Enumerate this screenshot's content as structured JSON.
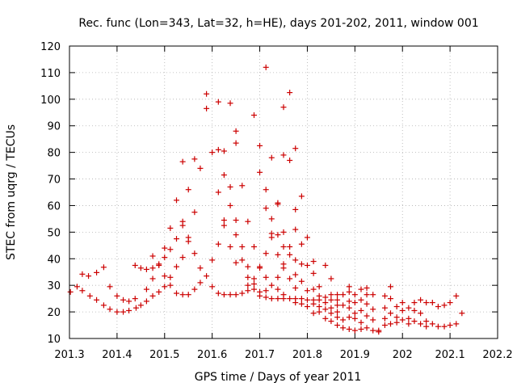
{
  "chart_data": {
    "type": "scatter",
    "title": "Rec. func (Lon=343, Lat=32, h=HE), days 201-202, 2011, window 001",
    "xlabel": "GPS time / Days of year 2011",
    "ylabel": "STEC from uqrg / TECUs",
    "xlim": [
      201.3,
      202.2
    ],
    "ylim": [
      10,
      120
    ],
    "xticks": [
      201.3,
      201.4,
      201.5,
      201.6,
      201.7,
      201.8,
      201.9,
      202,
      202.1,
      202.2
    ],
    "xtick_labels": [
      "201.3",
      "201.4",
      "201.5",
      "201.6",
      "201.7",
      "201.8",
      "201.9",
      "202",
      "202.1",
      "202.2"
    ],
    "yticks": [
      10,
      20,
      30,
      40,
      50,
      60,
      70,
      80,
      90,
      100,
      110,
      120
    ],
    "ytick_labels": [
      "10",
      "20",
      "30",
      "40",
      "50",
      "60",
      "70",
      "80",
      "90",
      "100",
      "110",
      "120"
    ],
    "marker_color": "#cc0000",
    "series": [
      {
        "name": "STEC",
        "points": [
          [
            201.302,
            27.5
          ],
          [
            201.316,
            29.5
          ],
          [
            201.327,
            34.2
          ],
          [
            201.327,
            28.0
          ],
          [
            201.34,
            33.5
          ],
          [
            201.343,
            26.0
          ],
          [
            201.357,
            34.8
          ],
          [
            201.357,
            24.5
          ],
          [
            201.372,
            36.8
          ],
          [
            201.372,
            22.5
          ],
          [
            201.385,
            29.5
          ],
          [
            201.385,
            21.0
          ],
          [
            201.4,
            26.0
          ],
          [
            201.4,
            20.0
          ],
          [
            201.413,
            24.5
          ],
          [
            201.413,
            20.0
          ],
          [
            201.425,
            24.0
          ],
          [
            201.425,
            20.5
          ],
          [
            201.438,
            37.5
          ],
          [
            201.438,
            25.0
          ],
          [
            201.44,
            21.5
          ],
          [
            201.45,
            36.5
          ],
          [
            201.45,
            22.5
          ],
          [
            201.462,
            36.0
          ],
          [
            201.462,
            28.5
          ],
          [
            201.462,
            24.0
          ],
          [
            201.475,
            36.5
          ],
          [
            201.475,
            41.0
          ],
          [
            201.475,
            32.5
          ],
          [
            201.475,
            26.0
          ],
          [
            201.488,
            38.0
          ],
          [
            201.488,
            37.5
          ],
          [
            201.488,
            27.5
          ],
          [
            201.5,
            44.0
          ],
          [
            201.5,
            40.5
          ],
          [
            201.5,
            33.5
          ],
          [
            201.5,
            29.5
          ],
          [
            201.512,
            51.5
          ],
          [
            201.512,
            43.5
          ],
          [
            201.512,
            33.0
          ],
          [
            201.512,
            30.0
          ],
          [
            201.525,
            62.0
          ],
          [
            201.525,
            47.5
          ],
          [
            201.525,
            37.0
          ],
          [
            201.525,
            27.0
          ],
          [
            201.538,
            76.5
          ],
          [
            201.538,
            54.0
          ],
          [
            201.538,
            52.5
          ],
          [
            201.538,
            40.5
          ],
          [
            201.538,
            26.5
          ],
          [
            201.55,
            66.0
          ],
          [
            201.55,
            48.0
          ],
          [
            201.55,
            46.5
          ],
          [
            201.55,
            26.5
          ],
          [
            201.563,
            77.5
          ],
          [
            201.563,
            57.5
          ],
          [
            201.563,
            42.0
          ],
          [
            201.563,
            28.5
          ],
          [
            201.575,
            74.0
          ],
          [
            201.575,
            36.5
          ],
          [
            201.575,
            31.0
          ],
          [
            201.588,
            102.0
          ],
          [
            201.588,
            96.5
          ],
          [
            201.588,
            33.5
          ],
          [
            201.6,
            80.0
          ],
          [
            201.6,
            39.5
          ],
          [
            201.6,
            29.5
          ],
          [
            201.613,
            99.0
          ],
          [
            201.613,
            81.0
          ],
          [
            201.613,
            65.0
          ],
          [
            201.613,
            45.5
          ],
          [
            201.613,
            27.0
          ],
          [
            201.625,
            80.5
          ],
          [
            201.625,
            71.5
          ],
          [
            201.625,
            54.5
          ],
          [
            201.625,
            52.5
          ],
          [
            201.625,
            26.5
          ],
          [
            201.638,
            98.5
          ],
          [
            201.638,
            67.0
          ],
          [
            201.638,
            60.0
          ],
          [
            201.638,
            44.5
          ],
          [
            201.638,
            26.5
          ],
          [
            201.65,
            88.0
          ],
          [
            201.65,
            83.5
          ],
          [
            201.65,
            54.5
          ],
          [
            201.65,
            49.0
          ],
          [
            201.65,
            38.5
          ],
          [
            201.65,
            26.5
          ],
          [
            201.663,
            67.5
          ],
          [
            201.663,
            44.5
          ],
          [
            201.663,
            39.5
          ],
          [
            201.663,
            27.0
          ],
          [
            201.675,
            54.0
          ],
          [
            201.675,
            37.0
          ],
          [
            201.675,
            33.0
          ],
          [
            201.675,
            30.0
          ],
          [
            201.675,
            28.0
          ],
          [
            201.688,
            94.0
          ],
          [
            201.688,
            44.5
          ],
          [
            201.688,
            32.5
          ],
          [
            201.688,
            30.5
          ],
          [
            201.688,
            28.5
          ],
          [
            201.7,
            82.5
          ],
          [
            201.7,
            72.5
          ],
          [
            201.7,
            37.0
          ],
          [
            201.7,
            36.5
          ],
          [
            201.7,
            27.5
          ],
          [
            201.7,
            26.0
          ],
          [
            201.713,
            112.0
          ],
          [
            201.713,
            66.0
          ],
          [
            201.713,
            59.0
          ],
          [
            201.713,
            42.0
          ],
          [
            201.713,
            33.0
          ],
          [
            201.713,
            28.0
          ],
          [
            201.713,
            25.5
          ],
          [
            201.725,
            78.0
          ],
          [
            201.725,
            55.0
          ],
          [
            201.725,
            49.5
          ],
          [
            201.725,
            48.0
          ],
          [
            201.725,
            30.0
          ],
          [
            201.725,
            25.0
          ],
          [
            201.738,
            61.0
          ],
          [
            201.738,
            60.5
          ],
          [
            201.738,
            49.0
          ],
          [
            201.738,
            41.5
          ],
          [
            201.738,
            33.0
          ],
          [
            201.738,
            28.5
          ],
          [
            201.738,
            25.0
          ],
          [
            201.75,
            97.0
          ],
          [
            201.75,
            79.0
          ],
          [
            201.75,
            50.0
          ],
          [
            201.75,
            44.5
          ],
          [
            201.75,
            38.0
          ],
          [
            201.75,
            36.5
          ],
          [
            201.75,
            26.5
          ],
          [
            201.75,
            25.0
          ],
          [
            201.763,
            102.5
          ],
          [
            201.763,
            77.0
          ],
          [
            201.763,
            44.5
          ],
          [
            201.763,
            41.5
          ],
          [
            201.763,
            32.5
          ],
          [
            201.763,
            25.0
          ],
          [
            201.775,
            81.5
          ],
          [
            201.775,
            58.5
          ],
          [
            201.775,
            51.0
          ],
          [
            201.775,
            39.5
          ],
          [
            201.775,
            34.0
          ],
          [
            201.775,
            29.0
          ],
          [
            201.775,
            25.0
          ],
          [
            201.775,
            23.5
          ],
          [
            201.788,
            63.5
          ],
          [
            201.788,
            45.5
          ],
          [
            201.788,
            38.0
          ],
          [
            201.788,
            31.5
          ],
          [
            201.788,
            25.0
          ],
          [
            201.788,
            23.0
          ],
          [
            201.8,
            48.0
          ],
          [
            201.8,
            37.5
          ],
          [
            201.8,
            28.0
          ],
          [
            201.8,
            24.5
          ],
          [
            201.8,
            22.0
          ],
          [
            201.813,
            39.0
          ],
          [
            201.813,
            34.5
          ],
          [
            201.813,
            28.5
          ],
          [
            201.813,
            24.5
          ],
          [
            201.813,
            23.0
          ],
          [
            201.813,
            19.5
          ],
          [
            201.825,
            29.5
          ],
          [
            201.825,
            26.0
          ],
          [
            201.825,
            24.5
          ],
          [
            201.825,
            22.0
          ],
          [
            201.825,
            20.0
          ],
          [
            201.838,
            37.5
          ],
          [
            201.838,
            25.5
          ],
          [
            201.838,
            23.5
          ],
          [
            201.838,
            21.0
          ],
          [
            201.838,
            17.5
          ],
          [
            201.85,
            32.5
          ],
          [
            201.85,
            26.5
          ],
          [
            201.85,
            24.5
          ],
          [
            201.85,
            21.5
          ],
          [
            201.85,
            19.5
          ],
          [
            201.85,
            16.5
          ],
          [
            201.863,
            26.5
          ],
          [
            201.863,
            24.5
          ],
          [
            201.863,
            22.5
          ],
          [
            201.863,
            20.0
          ],
          [
            201.863,
            18.0
          ],
          [
            201.863,
            15.0
          ],
          [
            201.875,
            26.5
          ],
          [
            201.875,
            22.5
          ],
          [
            201.875,
            17.0
          ],
          [
            201.875,
            14.0
          ],
          [
            201.888,
            29.5
          ],
          [
            201.888,
            27.5
          ],
          [
            201.888,
            24.0
          ],
          [
            201.888,
            21.5
          ],
          [
            201.888,
            18.0
          ],
          [
            201.888,
            13.5
          ],
          [
            201.9,
            26.5
          ],
          [
            201.9,
            23.5
          ],
          [
            201.9,
            19.5
          ],
          [
            201.9,
            17.5
          ],
          [
            201.9,
            13.0
          ],
          [
            201.913,
            28.5
          ],
          [
            201.913,
            24.5
          ],
          [
            201.913,
            20.5
          ],
          [
            201.913,
            16.0
          ],
          [
            201.913,
            13.5
          ],
          [
            201.925,
            29.0
          ],
          [
            201.925,
            26.5
          ],
          [
            201.925,
            23.0
          ],
          [
            201.925,
            18.5
          ],
          [
            201.925,
            14.0
          ],
          [
            201.938,
            26.5
          ],
          [
            201.938,
            21.0
          ],
          [
            201.938,
            17.0
          ],
          [
            201.938,
            13.0
          ],
          [
            201.95,
            13.0
          ],
          [
            201.95,
            12.5
          ],
          [
            201.963,
            26.0
          ],
          [
            201.963,
            21.5
          ],
          [
            201.963,
            17.5
          ],
          [
            201.963,
            15.0
          ],
          [
            201.975,
            29.5
          ],
          [
            201.975,
            25.0
          ],
          [
            201.975,
            19.5
          ],
          [
            201.975,
            15.5
          ],
          [
            201.988,
            22.0
          ],
          [
            201.988,
            18.0
          ],
          [
            201.988,
            16.0
          ],
          [
            202.0,
            23.5
          ],
          [
            202.0,
            20.5
          ],
          [
            202.0,
            17.0
          ],
          [
            202.013,
            21.5
          ],
          [
            202.013,
            17.5
          ],
          [
            202.013,
            15.5
          ],
          [
            202.025,
            23.5
          ],
          [
            202.025,
            20.5
          ],
          [
            202.025,
            16.5
          ],
          [
            202.038,
            24.5
          ],
          [
            202.038,
            19.5
          ],
          [
            202.038,
            15.5
          ],
          [
            202.05,
            23.5
          ],
          [
            202.05,
            16.5
          ],
          [
            202.05,
            14.5
          ],
          [
            202.063,
            23.5
          ],
          [
            202.063,
            15.5
          ],
          [
            202.075,
            22.0
          ],
          [
            202.075,
            14.5
          ],
          [
            202.088,
            22.5
          ],
          [
            202.088,
            14.5
          ],
          [
            202.1,
            23.5
          ],
          [
            202.1,
            15.0
          ],
          [
            202.113,
            26.0
          ],
          [
            202.113,
            15.5
          ],
          [
            202.125,
            19.5
          ]
        ]
      }
    ]
  }
}
